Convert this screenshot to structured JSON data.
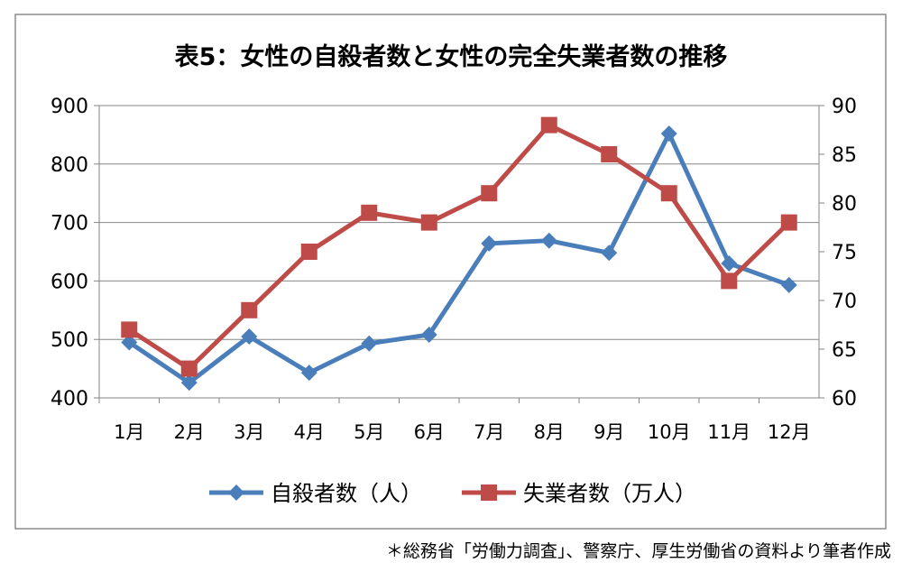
{
  "chart_data": {
    "type": "line",
    "title": "表5：女性の自殺者数と女性の完全失業者数の推移",
    "categories": [
      "1月",
      "2月",
      "3月",
      "4月",
      "5月",
      "6月",
      "7月",
      "8月",
      "9月",
      "10月",
      "11月",
      "12月"
    ],
    "y_left": {
      "ylim": [
        400,
        900
      ],
      "ticks": [
        "400",
        "500",
        "600",
        "700",
        "800",
        "900"
      ]
    },
    "y_right": {
      "ylim": [
        60,
        90
      ],
      "ticks": [
        "60",
        "65",
        "70",
        "75",
        "80",
        "85",
        "90"
      ]
    },
    "series": [
      {
        "name": "自殺者数（人）",
        "axis": "left",
        "color": "#4a7ebb",
        "marker": "diamond",
        "values": [
          495,
          426,
          505,
          443,
          493,
          508,
          664,
          669,
          648,
          852,
          630,
          593
        ]
      },
      {
        "name": "失業者数（万人）",
        "axis": "right",
        "color": "#be4b48",
        "marker": "square",
        "values": [
          67,
          63,
          69,
          75,
          79,
          78,
          81,
          88,
          85,
          81,
          72,
          78
        ]
      }
    ],
    "legend": "bottom",
    "grid": true
  },
  "footnote": "＊総務省「労働力調査」、警察庁、厚生労働省の資料より筆者作成"
}
